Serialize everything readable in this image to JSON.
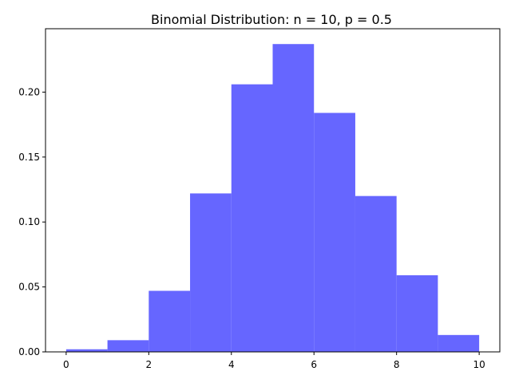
{
  "chart_data": {
    "type": "bar",
    "title": "Binomial Distribution: n = 10, p = 0.5",
    "xlabel": "",
    "ylabel": "",
    "bins": [
      {
        "x0": 0,
        "x1": 1,
        "value": 0.002
      },
      {
        "x0": 1,
        "x1": 2,
        "value": 0.009
      },
      {
        "x0": 2,
        "x1": 3,
        "value": 0.047
      },
      {
        "x0": 3,
        "x1": 4,
        "value": 0.122
      },
      {
        "x0": 4,
        "x1": 5,
        "value": 0.206
      },
      {
        "x0": 5,
        "x1": 6,
        "value": 0.237
      },
      {
        "x0": 6,
        "x1": 7,
        "value": 0.184
      },
      {
        "x0": 7,
        "x1": 8,
        "value": 0.12
      },
      {
        "x0": 8,
        "x1": 9,
        "value": 0.059
      },
      {
        "x0": 9,
        "x1": 10,
        "value": 0.013
      }
    ],
    "xticks": [
      0,
      2,
      4,
      6,
      8,
      10
    ],
    "xtick_labels": [
      "0",
      "2",
      "4",
      "6",
      "8",
      "10"
    ],
    "yticks": [
      0.0,
      0.05,
      0.1,
      0.15,
      0.2
    ],
    "ytick_labels": [
      "0.00",
      "0.05",
      "0.10",
      "0.15",
      "0.20"
    ],
    "xlim": [
      -0.5,
      10.5
    ],
    "ylim": [
      0,
      0.2488
    ],
    "bar_color": "#6666ff",
    "grid": false,
    "legend": "none"
  }
}
